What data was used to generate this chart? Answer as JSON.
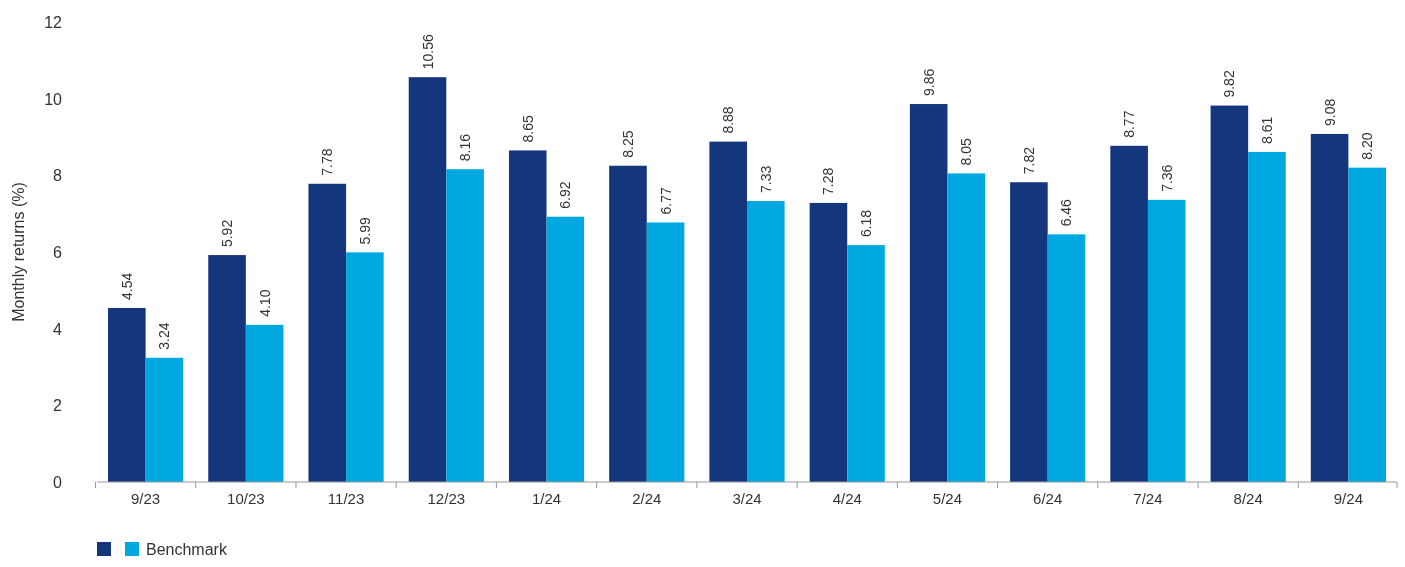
{
  "chart_data": {
    "type": "bar",
    "ylabel": "Monthly returns (%)",
    "categories": [
      "9/23",
      "10/23",
      "11/23",
      "12/23",
      "1/24",
      "2/24",
      "3/24",
      "4/24",
      "5/24",
      "6/24",
      "7/24",
      "8/24",
      "9/24"
    ],
    "series": [
      {
        "color": "#13367c",
        "values": [
          4.54,
          5.92,
          7.78,
          10.56,
          8.65,
          8.25,
          8.88,
          7.28,
          9.86,
          7.82,
          8.77,
          9.82,
          9.08
        ],
        "value_labels": [
          "4.54",
          "5.92",
          "7.78",
          "10.56",
          "8.65",
          "8.25",
          "8.88",
          "7.28",
          "9.86",
          "7.82",
          "8.77",
          "9.82",
          "9.08"
        ]
      },
      {
        "name": "Benchmark",
        "color": "#00a8e1",
        "values": [
          3.24,
          4.1,
          5.99,
          8.16,
          6.92,
          6.77,
          7.33,
          6.18,
          8.05,
          6.46,
          7.36,
          8.61,
          8.2
        ],
        "value_labels": [
          "3.24",
          "4.10",
          "5.99",
          "8.16",
          "6.92",
          "6.77",
          "7.33",
          "6.18",
          "8.05",
          "6.46",
          "7.36",
          "8.61",
          "8.20"
        ]
      }
    ],
    "ylim": [
      0,
      12
    ],
    "yticks": [
      0,
      2,
      4,
      6,
      8,
      10,
      12
    ],
    "grid": false,
    "legend": "bottom left"
  }
}
